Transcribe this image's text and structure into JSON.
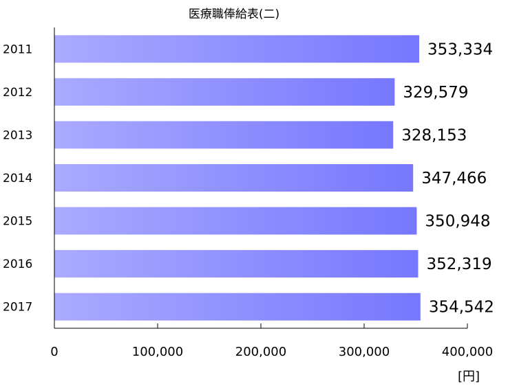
{
  "chart_data": {
    "type": "bar",
    "orientation": "horizontal",
    "title": "医療職俸給表(二)",
    "categories": [
      "2011",
      "2012",
      "2013",
      "2014",
      "2015",
      "2016",
      "2017"
    ],
    "values": [
      353334,
      329579,
      328153,
      347466,
      350948,
      352319,
      354542
    ],
    "value_labels": [
      "353,334",
      "329,579",
      "328,153",
      "347,466",
      "350,948",
      "352,319",
      "354,542"
    ],
    "xlim": [
      0,
      400000
    ],
    "xticks": [
      0,
      100000,
      200000,
      300000,
      400000
    ],
    "xtick_labels": [
      "0",
      "100,000",
      "200,000",
      "300,000",
      "400,000"
    ],
    "unit_label": "[円]",
    "grid": false,
    "bar_color_start": "#aaaaff",
    "bar_color_end": "#7777ff"
  }
}
